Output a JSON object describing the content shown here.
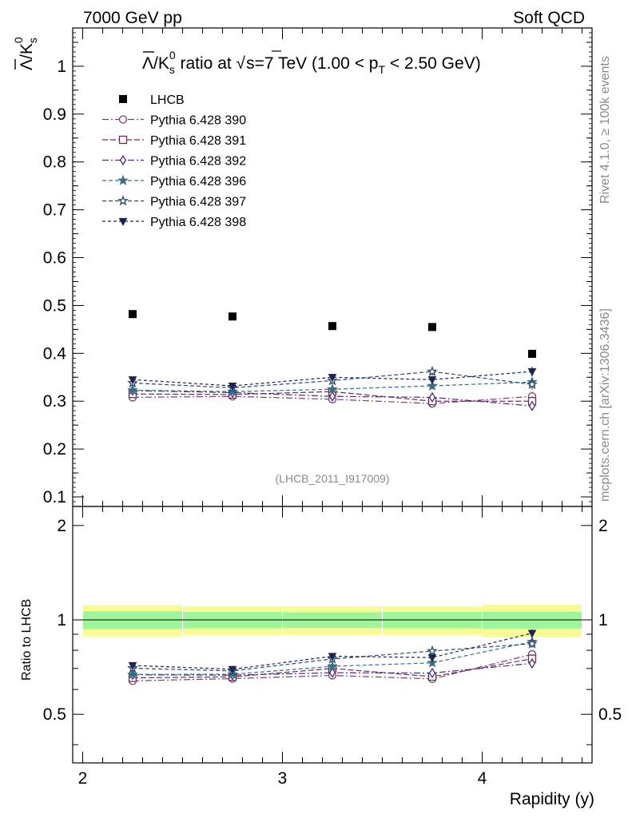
{
  "header": {
    "left": "7000 GeV pp",
    "right": "Soft QCD"
  },
  "side_labels": {
    "top": "Rivet 4.1.0, ≥ 100k events",
    "bottom": "mcplots.cern.ch [arXiv:1306.3436]"
  },
  "chart_data": {
    "type": "scatter",
    "title": {
      "lam": "Λ",
      "slash": "/K",
      "sub_s": "s",
      "sup_0": "0",
      "mid": " ratio at √",
      "s_eq": "s=7 TeV (1.00 < p",
      "sub_T": "T",
      "end": " < 2.50 GeV)"
    },
    "ylabel": {
      "lam": "Λ",
      "k": "/K",
      "sub_s": "s",
      "sup_0": "0"
    },
    "ratio_ylabel": "Ratio to LHCB",
    "xlabel": "Rapidity (y)",
    "watermark": "(LHCB_2011_I917009)",
    "xlim": [
      1.95,
      4.55
    ],
    "ylim": [
      0.08,
      1.08
    ],
    "ratio_ylim": [
      0.35,
      2.3
    ],
    "x_ticks": [
      "2",
      "3",
      "4"
    ],
    "y_ticks": [
      "0.1",
      "0.2",
      "0.3",
      "0.4",
      "0.5",
      "0.6",
      "0.7",
      "0.8",
      "0.9",
      "1"
    ],
    "ratio_y_ticks": [
      "0.5",
      "1",
      "2"
    ],
    "x": [
      2.25,
      2.75,
      3.25,
      3.75,
      4.25
    ],
    "data": {
      "name": "LHCB",
      "values": [
        0.482,
        0.477,
        0.457,
        0.455,
        0.399
      ],
      "band_bins": [
        [
          2.0,
          2.5
        ],
        [
          2.5,
          3.0
        ],
        [
          3.0,
          3.5
        ],
        [
          3.5,
          4.0
        ],
        [
          4.0,
          4.5
        ]
      ],
      "band_inner": [
        0.065,
        0.06,
        0.058,
        0.06,
        0.062
      ],
      "band_outer": [
        0.115,
        0.105,
        0.105,
        0.105,
        0.12
      ]
    },
    "series": [
      {
        "name": "Pythia 6.428 390",
        "color": "#7a3f78",
        "marker": "circle-open",
        "dash": "8,3,2,3",
        "values": [
          0.308,
          0.31,
          0.304,
          0.295,
          0.31
        ],
        "err": [
          0.006,
          0.006,
          0.007,
          0.008,
          0.01
        ]
      },
      {
        "name": "Pythia 6.428 391",
        "color": "#6b2f55",
        "marker": "square-open",
        "dash": "7,3",
        "values": [
          0.315,
          0.314,
          0.32,
          0.3,
          0.3
        ],
        "err": [
          0.006,
          0.006,
          0.007,
          0.008,
          0.01
        ]
      },
      {
        "name": "Pythia 6.428 392",
        "color": "#4b2a7a",
        "marker": "diamond-open",
        "dash": "8,3,2,3",
        "values": [
          0.322,
          0.318,
          0.31,
          0.308,
          0.29
        ],
        "err": [
          0.006,
          0.006,
          0.007,
          0.008,
          0.01
        ]
      },
      {
        "name": "Pythia 6.428 396",
        "color": "#3b6f86",
        "marker": "star-filled",
        "dash": "5,3",
        "values": [
          0.323,
          0.32,
          0.325,
          0.332,
          0.34
        ],
        "err": [
          0.006,
          0.006,
          0.007,
          0.008,
          0.01
        ]
      },
      {
        "name": "Pythia 6.428 397",
        "color": "#2d4a6a",
        "marker": "star-open",
        "dash": "5,3",
        "values": [
          0.338,
          0.328,
          0.343,
          0.362,
          0.335
        ],
        "err": [
          0.006,
          0.006,
          0.007,
          0.008,
          0.01
        ]
      },
      {
        "name": "Pythia 6.428 398",
        "color": "#1c2550",
        "marker": "triangle-down-filled",
        "dash": "4,3",
        "values": [
          0.345,
          0.332,
          0.35,
          0.345,
          0.362
        ],
        "err": [
          0.006,
          0.006,
          0.007,
          0.008,
          0.01
        ]
      }
    ]
  }
}
